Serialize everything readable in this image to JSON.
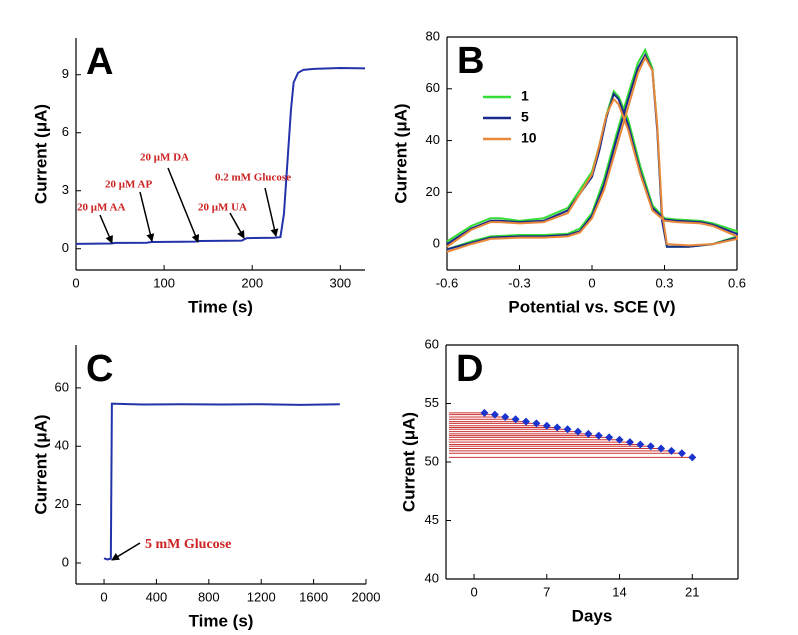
{
  "chart_data": [
    {
      "type": "line",
      "panel_label": "A",
      "xlabel": "Time (s)",
      "ylabel": "Current (μA)",
      "x": [
        0,
        40,
        45,
        80,
        86,
        135,
        140,
        188,
        194,
        225,
        232,
        236,
        240,
        244,
        247,
        252,
        258,
        270,
        300,
        328
      ],
      "values": [
        0.25,
        0.27,
        0.3,
        0.31,
        0.35,
        0.37,
        0.4,
        0.42,
        0.55,
        0.57,
        0.6,
        1.8,
        4.5,
        7.2,
        8.6,
        9.1,
        9.25,
        9.3,
        9.35,
        9.33
      ],
      "color": "#2233aa",
      "xlim": [
        0,
        328
      ],
      "xticks": [
        0,
        100,
        200,
        300
      ],
      "ylim": [
        -1.1,
        10.9
      ],
      "yticks": [
        0,
        3,
        6,
        9
      ],
      "frame": "axes",
      "annotations": [
        "20 μM AA",
        "20 μM AP",
        "20 μM DA",
        "20 μM UA",
        "0.2 mM Glucose"
      ]
    },
    {
      "type": "line",
      "panel_label": "B",
      "xlabel": "Potential vs. SCE (V)",
      "ylabel": "Current (μA)",
      "x": [
        -0.6,
        -0.5,
        -0.42,
        -0.3,
        -0.2,
        -0.1,
        -0.05,
        0,
        0.05,
        0.1,
        0.15,
        0.19,
        0.22,
        0.25,
        0.27,
        0.29,
        0.31,
        0.4,
        0.5,
        0.6,
        0.6,
        0.5,
        0.45,
        0.35,
        0.3,
        0.25,
        0.2,
        0.15,
        0.11,
        0.09,
        0.06,
        0.03,
        0,
        -0.1,
        -0.2,
        -0.3,
        -0.38,
        -0.42,
        -0.5,
        -0.6
      ],
      "series": [
        {
          "name": "1",
          "color": "#33dd33",
          "values": [
            -2,
            1,
            3,
            3.5,
            3.5,
            4,
            6,
            12,
            25,
            42,
            58,
            70,
            75,
            68,
            45,
            10,
            -1,
            -1,
            0,
            3,
            5,
            8,
            9,
            9.5,
            10,
            15,
            30,
            48,
            57,
            59,
            50,
            38,
            28,
            14,
            10,
            9,
            10,
            10,
            7,
            1
          ]
        },
        {
          "name": "5",
          "color": "#1a2a8c",
          "values": [
            -2,
            0.5,
            2.5,
            3,
            3,
            3.5,
            5,
            11,
            23,
            40,
            56,
            68,
            73,
            67,
            44,
            9,
            -1,
            -1,
            0,
            2.5,
            4,
            7.5,
            8.5,
            9,
            9.5,
            14,
            28,
            46,
            56,
            58,
            49,
            36,
            26,
            13,
            9,
            8.5,
            9,
            9,
            6,
            0
          ]
        },
        {
          "name": "10",
          "color": "#e8883a",
          "values": [
            -3,
            0,
            2,
            2.5,
            2.5,
            3,
            4.5,
            10,
            21,
            37,
            53,
            66,
            72,
            67,
            46,
            12,
            0,
            -0.5,
            0,
            2,
            3,
            7,
            8,
            8.5,
            9,
            13,
            27,
            44,
            54,
            56,
            50,
            38,
            27,
            12,
            8.5,
            8,
            8.5,
            8.5,
            5.5,
            -1
          ]
        }
      ],
      "xlim": [
        -0.6,
        0.6
      ],
      "xticks": [
        -0.6,
        -0.3,
        0,
        0.3,
        0.6
      ],
      "ylim": [
        -10,
        80
      ],
      "yticks": [
        0,
        20,
        40,
        60,
        80
      ],
      "frame": "box",
      "legend": "upper left"
    },
    {
      "type": "line",
      "panel_label": "C",
      "xlabel": "Time (s)",
      "ylabel": "Current (μA)",
      "x": [
        0,
        25,
        45,
        52,
        60,
        300,
        600,
        900,
        1200,
        1500,
        1800
      ],
      "values": [
        1.6,
        1.2,
        1.4,
        1.5,
        54.6,
        54.3,
        54.4,
        54.3,
        54.4,
        54.2,
        54.4
      ],
      "color": "#2233aa",
      "xlim": [
        -214,
        2000
      ],
      "xticks": [
        0,
        400,
        800,
        1200,
        1600,
        2000
      ],
      "ylim": [
        -7.2,
        74.7
      ],
      "yticks": [
        0,
        20,
        40,
        60
      ],
      "frame": "axes",
      "annotations": [
        "5 mM Glucose"
      ]
    },
    {
      "type": "scatter",
      "panel_label": "D",
      "xlabel": "Days",
      "ylabel": "Current (μA)",
      "x": [
        1,
        2,
        3,
        4,
        5,
        6,
        7,
        8,
        9,
        10,
        11,
        12,
        13,
        14,
        15,
        16,
        17,
        18,
        19,
        20,
        21
      ],
      "values": [
        54.2,
        54.05,
        53.85,
        53.65,
        53.45,
        53.3,
        53.1,
        52.95,
        52.8,
        52.6,
        52.4,
        52.25,
        52.1,
        51.9,
        51.7,
        51.5,
        51.35,
        51.15,
        50.95,
        50.75,
        50.4
      ],
      "color": "#1a33cc",
      "hatch_color": "#cc3333",
      "xlim": [
        -2.7,
        25.4
      ],
      "xticks": [
        0,
        7,
        14,
        21
      ],
      "ylim": [
        40,
        60
      ],
      "yticks": [
        40,
        45,
        50,
        55,
        60
      ],
      "frame": "box"
    }
  ]
}
